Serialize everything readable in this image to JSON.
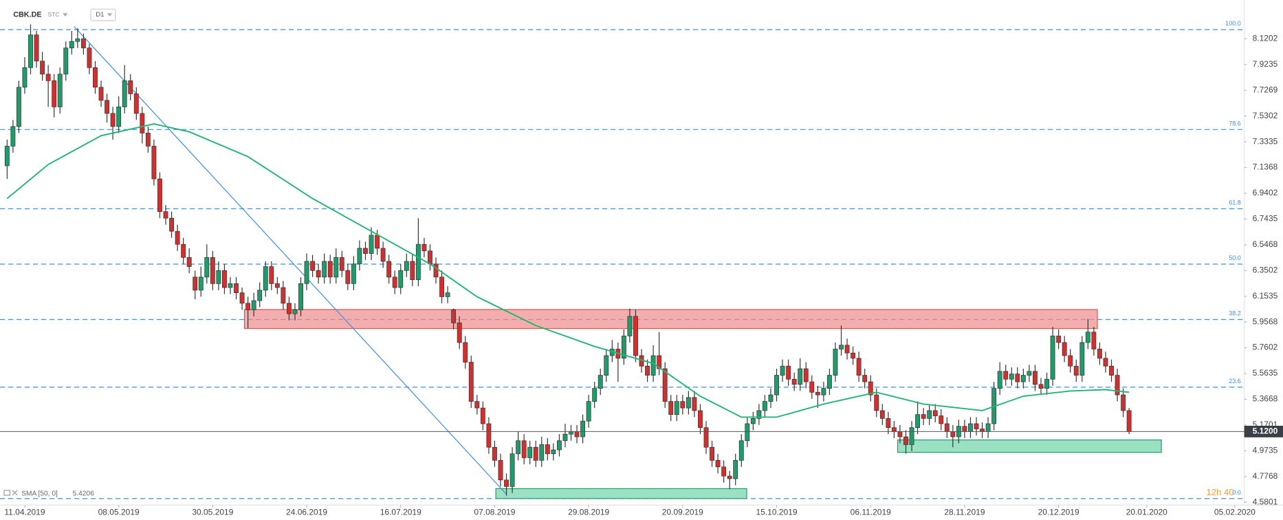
{
  "header": {
    "symbol": "CBK.DE",
    "group": "STC",
    "timeframe": "D1"
  },
  "chart_data": {
    "type": "candlestick",
    "xlim": [
      -1.21,
      210.6
    ],
    "ylim": [
      4.5578,
      8.4165
    ],
    "yticks": [
      8.1202,
      7.9235,
      7.7269,
      7.5302,
      7.3335,
      7.1368,
      6.9402,
      6.7435,
      6.5468,
      6.3502,
      6.1535,
      5.9568,
      5.7602,
      5.5635,
      5.3668,
      5.1701,
      4.9735,
      4.7768,
      4.5801
    ],
    "xticks": [
      {
        "value": 3,
        "label": "11.04.2019"
      },
      {
        "value": 19,
        "label": "08.05.2019"
      },
      {
        "value": 35,
        "label": "30.05.2019"
      },
      {
        "value": 51,
        "label": "24.06.2019"
      },
      {
        "value": 67,
        "label": "16.07.2019"
      },
      {
        "value": 83,
        "label": "07.08.2019"
      },
      {
        "value": 99,
        "label": "29.08.2019"
      },
      {
        "value": 115,
        "label": "20.09.2019"
      },
      {
        "value": 131,
        "label": "15.10.2019"
      },
      {
        "value": 147,
        "label": "06.11.2019"
      },
      {
        "value": 163,
        "label": "28.11.2019"
      },
      {
        "value": 179,
        "label": "20.12.2019"
      },
      {
        "value": 194,
        "label": "20.01.2020"
      },
      {
        "value": 209,
        "label": "05.02.2020"
      }
    ],
    "up_color": "#1f9c6b",
    "down_color": "#d32f2f",
    "candles": [
      [
        7.15,
        7.35,
        7.05,
        7.3
      ],
      [
        7.3,
        7.5,
        7.25,
        7.45
      ],
      [
        7.45,
        7.8,
        7.4,
        7.75
      ],
      [
        7.75,
        7.98,
        7.7,
        7.9
      ],
      [
        7.9,
        8.23,
        7.85,
        8.15
      ],
      [
        8.15,
        8.18,
        7.9,
        7.95
      ],
      [
        7.95,
        8.02,
        7.8,
        7.85
      ],
      [
        7.85,
        7.92,
        7.6,
        7.8
      ],
      [
        7.8,
        7.85,
        7.52,
        7.6
      ],
      [
        7.6,
        7.9,
        7.55,
        7.85
      ],
      [
        7.85,
        8.1,
        7.8,
        8.05
      ],
      [
        8.05,
        8.18,
        8.0,
        8.1
      ],
      [
        8.1,
        8.2,
        8.05,
        8.12
      ],
      [
        8.12,
        8.16,
        8.0,
        8.05
      ],
      [
        8.05,
        8.08,
        7.85,
        7.9
      ],
      [
        7.9,
        7.95,
        7.7,
        7.75
      ],
      [
        7.75,
        7.8,
        7.6,
        7.65
      ],
      [
        7.65,
        7.7,
        7.48,
        7.55
      ],
      [
        7.55,
        7.6,
        7.35,
        7.45
      ],
      [
        7.45,
        7.68,
        7.4,
        7.6
      ],
      [
        7.6,
        7.92,
        7.55,
        7.8
      ],
      [
        7.8,
        7.85,
        7.65,
        7.7
      ],
      [
        7.7,
        7.75,
        7.5,
        7.55
      ],
      [
        7.55,
        7.6,
        7.32,
        7.4
      ],
      [
        7.4,
        7.45,
        7.25,
        7.3
      ],
      [
        7.3,
        7.35,
        7.0,
        7.05
      ],
      [
        7.05,
        7.1,
        6.75,
        6.8
      ],
      [
        6.8,
        6.85,
        6.7,
        6.75
      ],
      [
        6.75,
        6.8,
        6.6,
        6.65
      ],
      [
        6.65,
        6.7,
        6.5,
        6.55
      ],
      [
        6.55,
        6.6,
        6.4,
        6.45
      ],
      [
        6.45,
        6.52,
        6.33,
        6.38
      ],
      [
        6.3,
        6.35,
        6.13,
        6.2
      ],
      [
        6.2,
        6.38,
        6.15,
        6.3
      ],
      [
        6.3,
        6.55,
        6.25,
        6.45
      ],
      [
        6.45,
        6.5,
        6.2,
        6.25
      ],
      [
        6.25,
        6.42,
        6.2,
        6.35
      ],
      [
        6.35,
        6.4,
        6.17,
        6.22
      ],
      [
        6.22,
        6.3,
        6.17,
        6.25
      ],
      [
        6.25,
        6.3,
        6.13,
        6.18
      ],
      [
        6.18,
        6.22,
        6.05,
        6.1
      ],
      [
        6.1,
        6.15,
        5.91,
        6.05
      ],
      [
        6.05,
        6.18,
        6.0,
        6.12
      ],
      [
        6.12,
        6.26,
        6.07,
        6.2
      ],
      [
        6.2,
        6.42,
        6.15,
        6.38
      ],
      [
        6.38,
        6.42,
        6.2,
        6.25
      ],
      [
        6.25,
        6.3,
        6.17,
        6.22
      ],
      [
        6.22,
        6.27,
        6.05,
        6.1
      ],
      [
        6.1,
        6.15,
        5.97,
        6.02
      ],
      [
        6.02,
        6.1,
        5.97,
        6.05
      ],
      [
        6.05,
        6.3,
        6.0,
        6.25
      ],
      [
        6.25,
        6.48,
        6.2,
        6.42
      ],
      [
        6.42,
        6.47,
        6.3,
        6.35
      ],
      [
        6.35,
        6.4,
        6.25,
        6.3
      ],
      [
        6.3,
        6.48,
        6.25,
        6.42
      ],
      [
        6.42,
        6.47,
        6.25,
        6.3
      ],
      [
        6.3,
        6.52,
        6.25,
        6.45
      ],
      [
        6.45,
        6.5,
        6.3,
        6.35
      ],
      [
        6.35,
        6.4,
        6.2,
        6.25
      ],
      [
        6.25,
        6.46,
        6.2,
        6.4
      ],
      [
        6.4,
        6.58,
        6.35,
        6.52
      ],
      [
        6.52,
        6.57,
        6.43,
        6.48
      ],
      [
        6.48,
        6.68,
        6.43,
        6.62
      ],
      [
        6.62,
        6.66,
        6.47,
        6.52
      ],
      [
        6.52,
        6.57,
        6.37,
        6.42
      ],
      [
        6.42,
        6.47,
        6.25,
        6.3
      ],
      [
        6.3,
        6.35,
        6.17,
        6.22
      ],
      [
        6.22,
        6.4,
        6.17,
        6.35
      ],
      [
        6.35,
        6.48,
        6.3,
        6.42
      ],
      [
        6.42,
        6.47,
        6.23,
        6.28
      ],
      [
        6.28,
        6.75,
        6.23,
        6.55
      ],
      [
        6.55,
        6.6,
        6.45,
        6.5
      ],
      [
        6.5,
        6.55,
        6.35,
        6.4
      ],
      [
        6.4,
        6.45,
        6.25,
        6.3
      ],
      [
        6.3,
        6.35,
        6.1,
        6.15
      ],
      [
        6.15,
        6.23,
        6.1,
        6.18
      ],
      [
        6.05,
        6.06,
        5.9,
        5.95
      ],
      [
        5.95,
        6.0,
        5.75,
        5.8
      ],
      [
        5.8,
        5.85,
        5.6,
        5.65
      ],
      [
        5.65,
        5.7,
        5.3,
        5.35
      ],
      [
        5.35,
        5.4,
        5.25,
        5.3
      ],
      [
        5.3,
        5.35,
        5.13,
        5.18
      ],
      [
        5.18,
        5.23,
        4.95,
        5.0
      ],
      [
        5.0,
        5.05,
        4.85,
        4.9
      ],
      [
        4.9,
        4.95,
        4.7,
        4.75
      ],
      [
        4.75,
        4.8,
        4.63,
        4.7
      ],
      [
        4.7,
        5.0,
        4.65,
        4.95
      ],
      [
        4.95,
        5.12,
        4.9,
        5.05
      ],
      [
        5.05,
        5.1,
        4.87,
        4.92
      ],
      [
        4.92,
        5.05,
        4.87,
        5.0
      ],
      [
        5.0,
        5.05,
        4.85,
        4.9
      ],
      [
        4.9,
        5.08,
        4.85,
        5.02
      ],
      [
        5.02,
        5.07,
        4.9,
        4.95
      ],
      [
        4.95,
        5.03,
        4.9,
        4.98
      ],
      [
        4.98,
        5.1,
        4.93,
        5.05
      ],
      [
        5.05,
        5.18,
        5.0,
        5.1
      ],
      [
        5.1,
        5.17,
        5.05,
        5.12
      ],
      [
        5.12,
        5.17,
        5.03,
        5.08
      ],
      [
        5.08,
        5.25,
        5.03,
        5.2
      ],
      [
        5.2,
        5.4,
        5.15,
        5.35
      ],
      [
        5.35,
        5.5,
        5.3,
        5.45
      ],
      [
        5.45,
        5.6,
        5.4,
        5.55
      ],
      [
        5.55,
        5.75,
        5.5,
        5.7
      ],
      [
        5.7,
        5.82,
        5.65,
        5.75
      ],
      [
        5.75,
        5.8,
        5.5,
        5.68
      ],
      [
        5.68,
        5.9,
        5.63,
        5.85
      ],
      [
        5.85,
        6.06,
        5.8,
        6.0
      ],
      [
        6.0,
        6.05,
        5.65,
        5.7
      ],
      [
        5.7,
        5.75,
        5.57,
        5.62
      ],
      [
        5.62,
        5.67,
        5.5,
        5.55
      ],
      [
        5.55,
        5.78,
        5.5,
        5.7
      ],
      [
        5.7,
        5.88,
        5.55,
        5.6
      ],
      [
        5.6,
        5.65,
        5.3,
        5.35
      ],
      [
        5.35,
        5.4,
        5.2,
        5.25
      ],
      [
        5.25,
        5.4,
        5.2,
        5.35
      ],
      [
        5.35,
        5.4,
        5.25,
        5.3
      ],
      [
        5.3,
        5.43,
        5.25,
        5.38
      ],
      [
        5.38,
        5.43,
        5.23,
        5.28
      ],
      [
        5.28,
        5.33,
        5.1,
        5.15
      ],
      [
        5.15,
        5.2,
        4.95,
        5.0
      ],
      [
        5.0,
        5.05,
        4.85,
        4.9
      ],
      [
        4.9,
        4.95,
        4.8,
        4.85
      ],
      [
        4.85,
        4.9,
        4.73,
        4.78
      ],
      [
        4.78,
        4.82,
        4.68,
        4.76
      ],
      [
        4.76,
        4.95,
        4.71,
        4.9
      ],
      [
        4.9,
        5.1,
        4.85,
        5.05
      ],
      [
        5.05,
        5.23,
        5.0,
        5.18
      ],
      [
        5.18,
        5.27,
        5.13,
        5.22
      ],
      [
        5.22,
        5.33,
        5.17,
        5.28
      ],
      [
        5.28,
        5.4,
        5.23,
        5.35
      ],
      [
        5.35,
        5.45,
        5.3,
        5.4
      ],
      [
        5.4,
        5.6,
        5.35,
        5.55
      ],
      [
        5.55,
        5.67,
        5.5,
        5.62
      ],
      [
        5.62,
        5.67,
        5.47,
        5.52
      ],
      [
        5.52,
        5.57,
        5.43,
        5.48
      ],
      [
        5.48,
        5.68,
        5.43,
        5.6
      ],
      [
        5.6,
        5.65,
        5.45,
        5.5
      ],
      [
        5.5,
        5.55,
        5.37,
        5.42
      ],
      [
        5.42,
        5.47,
        5.3,
        5.4
      ],
      [
        5.4,
        5.5,
        5.35,
        5.45
      ],
      [
        5.45,
        5.6,
        5.4,
        5.55
      ],
      [
        5.55,
        5.8,
        5.5,
        5.75
      ],
      [
        5.75,
        5.93,
        5.7,
        5.78
      ],
      [
        5.78,
        5.83,
        5.67,
        5.72
      ],
      [
        5.72,
        5.77,
        5.63,
        5.68
      ],
      [
        5.68,
        5.73,
        5.5,
        5.55
      ],
      [
        5.55,
        5.6,
        5.45,
        5.5
      ],
      [
        5.5,
        5.55,
        5.35,
        5.4
      ],
      [
        5.4,
        5.45,
        5.23,
        5.28
      ],
      [
        5.28,
        5.33,
        5.17,
        5.22
      ],
      [
        5.22,
        5.27,
        5.1,
        5.15
      ],
      [
        5.15,
        5.2,
        5.07,
        5.12
      ],
      [
        5.12,
        5.17,
        5.03,
        5.08
      ],
      [
        5.08,
        5.13,
        4.95,
        5.02
      ],
      [
        5.02,
        5.2,
        4.97,
        5.15
      ],
      [
        5.15,
        5.35,
        5.1,
        5.25
      ],
      [
        5.25,
        5.3,
        5.17,
        5.22
      ],
      [
        5.22,
        5.33,
        5.17,
        5.28
      ],
      [
        5.28,
        5.33,
        5.19,
        5.24
      ],
      [
        5.24,
        5.29,
        5.13,
        5.18
      ],
      [
        5.18,
        5.23,
        5.07,
        5.12
      ],
      [
        5.12,
        5.17,
        5.0,
        5.08
      ],
      [
        5.08,
        5.21,
        5.03,
        5.16
      ],
      [
        5.16,
        5.21,
        5.07,
        5.12
      ],
      [
        5.12,
        5.23,
        5.07,
        5.18
      ],
      [
        5.18,
        5.23,
        5.09,
        5.14
      ],
      [
        5.14,
        5.19,
        5.07,
        5.12
      ],
      [
        5.12,
        5.23,
        5.07,
        5.18
      ],
      [
        5.18,
        5.5,
        5.13,
        5.45
      ],
      [
        5.45,
        5.65,
        5.4,
        5.58
      ],
      [
        5.58,
        5.63,
        5.47,
        5.52
      ],
      [
        5.52,
        5.61,
        5.47,
        5.56
      ],
      [
        5.56,
        5.61,
        5.45,
        5.5
      ],
      [
        5.5,
        5.6,
        5.45,
        5.55
      ],
      [
        5.55,
        5.63,
        5.5,
        5.58
      ],
      [
        5.58,
        5.63,
        5.43,
        5.48
      ],
      [
        5.48,
        5.53,
        5.4,
        5.45
      ],
      [
        5.45,
        5.57,
        5.4,
        5.52
      ],
      [
        5.52,
        5.92,
        5.47,
        5.85
      ],
      [
        5.85,
        5.9,
        5.75,
        5.8
      ],
      [
        5.8,
        5.85,
        5.65,
        5.7
      ],
      [
        5.7,
        5.75,
        5.57,
        5.62
      ],
      [
        5.62,
        5.67,
        5.5,
        5.55
      ],
      [
        5.55,
        5.85,
        5.5,
        5.8
      ],
      [
        5.8,
        5.98,
        5.75,
        5.88
      ],
      [
        5.88,
        5.92,
        5.7,
        5.75
      ],
      [
        5.75,
        5.8,
        5.63,
        5.68
      ],
      [
        5.68,
        5.73,
        5.57,
        5.62
      ],
      [
        5.62,
        5.67,
        5.5,
        5.55
      ],
      [
        5.55,
        5.6,
        5.35,
        5.4
      ],
      [
        5.4,
        5.45,
        5.23,
        5.28
      ],
      [
        5.28,
        5.3,
        5.1,
        5.12
      ]
    ],
    "sma": {
      "name": "SMA [50, 0]",
      "last": 5.4206,
      "color": "#22b573",
      "x": [
        0,
        7,
        16,
        25,
        31,
        41,
        52,
        62,
        72,
        80,
        90,
        100,
        110,
        118,
        125,
        131,
        139,
        148,
        156,
        166,
        173,
        181,
        187,
        191
      ],
      "values": [
        6.9,
        7.16,
        7.38,
        7.47,
        7.41,
        7.22,
        6.9,
        6.65,
        6.4,
        6.15,
        5.93,
        5.77,
        5.64,
        5.39,
        5.23,
        5.23,
        5.33,
        5.42,
        5.33,
        5.28,
        5.39,
        5.43,
        5.44,
        5.42
      ]
    },
    "fib_color": "#3d8ee0",
    "fib_levels": [
      {
        "value": 8.19,
        "label": "100.0"
      },
      {
        "value": 7.427,
        "label": "78.6"
      },
      {
        "value": 6.822,
        "label": "61.8"
      },
      {
        "value": 6.399,
        "label": "50.0"
      },
      {
        "value": 5.976,
        "label": "38.2"
      },
      {
        "value": 5.459,
        "label": "23.6"
      },
      {
        "value": 4.608,
        "label": "0.0"
      }
    ],
    "zones": [
      {
        "x": [
          40.4,
          185.6
        ],
        "y": [
          5.907,
          6.052
        ],
        "color": "#f08a8a",
        "stroke": "#d9534f"
      },
      {
        "x": [
          83.2,
          125.9
        ],
        "y": [
          4.608,
          4.684
        ],
        "color": "#6fd3a8",
        "stroke": "#1f9c6b"
      },
      {
        "x": [
          151.6,
          196.5
        ],
        "y": [
          4.961,
          5.056
        ],
        "color": "#6fd3a8",
        "stroke": "#1f9c6b"
      }
    ],
    "trendline": {
      "x": [
        11.4,
        84.9
      ],
      "y": [
        8.215,
        4.646
      ],
      "color": "#3d8ee0"
    },
    "last_price": {
      "value": 5.12,
      "label": "5.1200"
    },
    "countdown": "12h 40"
  }
}
